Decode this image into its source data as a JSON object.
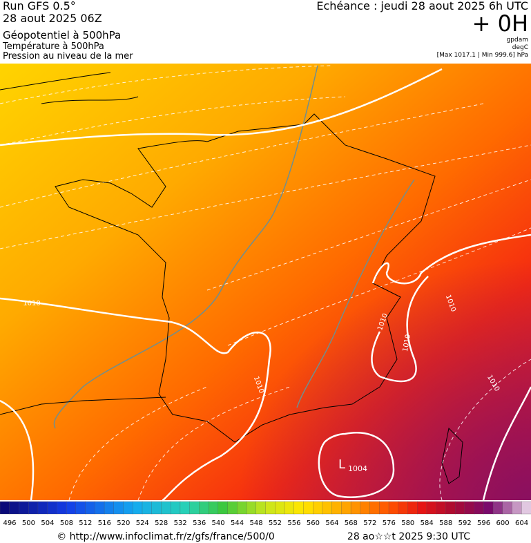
{
  "header": {
    "run": "Run GFS 0.5°",
    "date": "28 aout 2025 06Z",
    "layer1": "Géopotentiel à 500hPa",
    "layer2": "Température à 500hPa",
    "layer3": "Pression au niveau de la mer",
    "echeance": "Echéance : jeudi 28 aout 2025 6h UTC",
    "offset": "+ 0H",
    "unit1": "gpdam",
    "unit2": "degC",
    "range": "[Max 1017.1 | Min 999.6] hPa"
  },
  "map": {
    "isobar_labels": [
      "1010",
      "1010",
      "1010",
      "1010",
      "1010",
      "1010"
    ],
    "low": {
      "symbol": "L",
      "value": "1004"
    }
  },
  "colorbar": {
    "labels": [
      496,
      500,
      504,
      508,
      512,
      516,
      520,
      524,
      528,
      532,
      536,
      540,
      544,
      548,
      552,
      556,
      560,
      564,
      568,
      572,
      576,
      580,
      584,
      588,
      592,
      596,
      600,
      604
    ]
  },
  "footer": {
    "source": "© http://www.infoclimat.fr/z/gfs/france/500/0",
    "time": "28 ao☆☆t 2025  9:30 UTC"
  }
}
